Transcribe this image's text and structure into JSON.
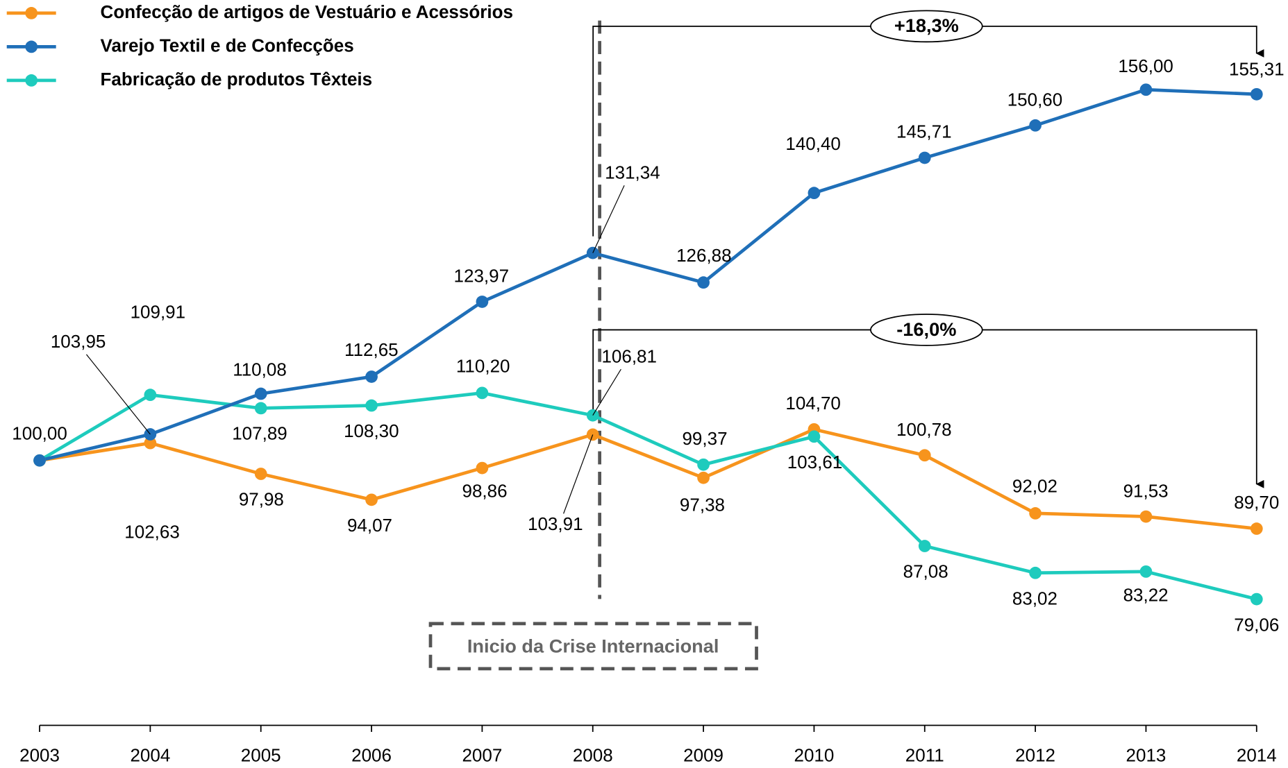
{
  "chart_data": {
    "type": "line",
    "categories": [
      "2003",
      "2004",
      "2005",
      "2006",
      "2007",
      "2008",
      "2009",
      "2010",
      "2011",
      "2012",
      "2013",
      "2014"
    ],
    "series": [
      {
        "name": "Confecção de artigos de Vestuário e Acessórios",
        "color": "#f7941d",
        "values": [
          100.0,
          102.63,
          97.98,
          94.07,
          98.86,
          103.91,
          97.38,
          104.7,
          100.78,
          92.02,
          91.53,
          89.7
        ],
        "value_labels": [
          "100,00",
          "102,63",
          "97,98",
          "94,07",
          "98,86",
          "103,91",
          "97,38",
          "104,70",
          "100,78",
          "92,02",
          "91,53",
          "89,70"
        ]
      },
      {
        "name": "Varejo Textil e de Confecções",
        "color": "#1f6fb8",
        "values": [
          100.0,
          103.95,
          110.08,
          112.65,
          123.97,
          131.34,
          126.88,
          140.4,
          145.71,
          150.6,
          156.0,
          155.31
        ],
        "value_labels": [
          null,
          "103,95",
          "110,08",
          "112,65",
          "123,97",
          "131,34",
          "126,88",
          "140,40",
          "145,71",
          "150,60",
          "156,00",
          "155,31"
        ]
      },
      {
        "name": "Fabricação de produtos Têxteis",
        "color": "#1ecbbd",
        "values": [
          100.0,
          109.91,
          107.89,
          108.3,
          110.2,
          106.81,
          99.37,
          103.61,
          87.08,
          83.02,
          83.22,
          79.06
        ],
        "value_labels": [
          null,
          "109,91",
          "107,89",
          "108,30",
          "110,20",
          "106,81",
          "99,37",
          "103,61",
          "87,08",
          "83,02",
          "83,22",
          "79,06"
        ]
      }
    ],
    "ylim": [
      60,
      160
    ],
    "annotations": [
      "+18,3%",
      "-16,0%",
      "Inicio da Crise Internacional"
    ]
  }
}
